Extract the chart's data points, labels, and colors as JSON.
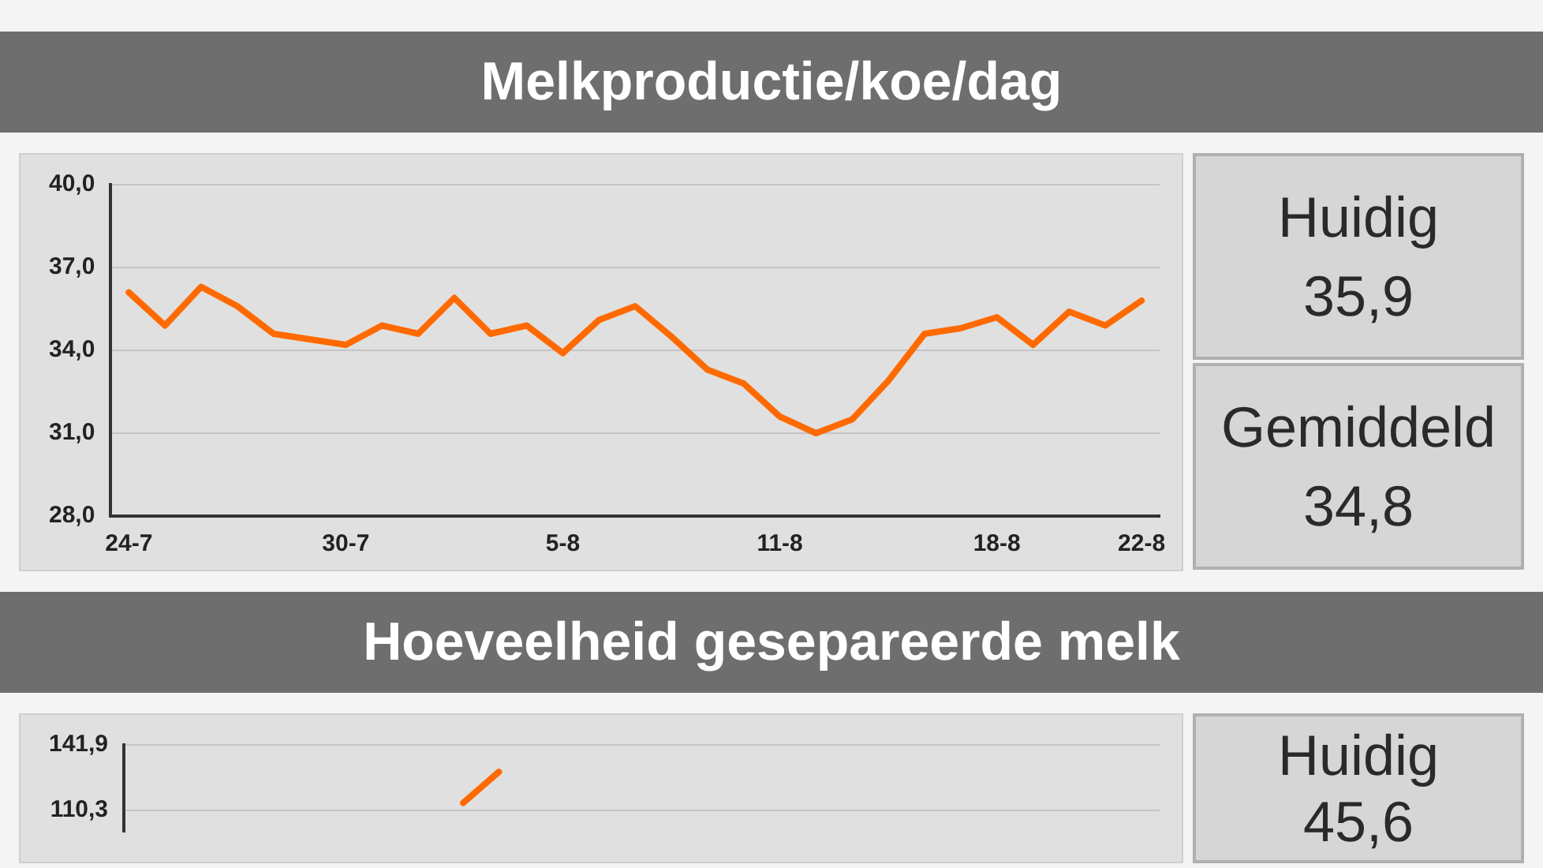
{
  "chart_data": [
    {
      "type": "line",
      "title": "Melkproductie/koe/dag",
      "categories": [
        "24-7",
        null,
        null,
        null,
        null,
        null,
        "30-7",
        null,
        null,
        null,
        null,
        null,
        "5-8",
        null,
        null,
        null,
        null,
        null,
        "11-8",
        null,
        null,
        null,
        null,
        null,
        "18-8",
        null,
        null,
        null,
        "22-8"
      ],
      "series": [
        {
          "color": "#ff6a00",
          "values": [
            36.1,
            34.9,
            36.3,
            35.6,
            34.6,
            34.4,
            34.2,
            34.9,
            34.6,
            35.9,
            34.6,
            34.9,
            33.9,
            35.1,
            35.6,
            34.5,
            33.3,
            32.8,
            31.6,
            31.0,
            31.5,
            32.9,
            34.6,
            34.8,
            35.2,
            34.2,
            35.4,
            34.9,
            35.8
          ]
        }
      ],
      "ylim": [
        28,
        40
      ],
      "yticks": [
        {
          "value": 28,
          "label": "28,0"
        },
        {
          "value": 31,
          "label": "31,0"
        },
        {
          "value": 34,
          "label": "34,0"
        },
        {
          "value": 37,
          "label": "37,0"
        },
        {
          "value": 40,
          "label": "40,0"
        }
      ],
      "grid": "y",
      "legend": false,
      "marker": "none",
      "line_style": "solid",
      "annotations": [
        "Huidig",
        "35,9",
        "Gemiddeld",
        "34,8"
      ]
    },
    {
      "type": "line",
      "title": "Hoeveelheid gesepareerde melk",
      "categories": [
        null,
        null,
        null,
        null,
        null,
        null,
        null,
        null,
        null,
        null,
        null,
        null,
        null,
        null,
        null,
        null,
        null,
        null,
        null,
        null,
        null,
        null,
        null,
        null,
        null,
        null,
        null,
        null,
        null
      ],
      "series": [
        {
          "color": "#ff6a00",
          "values": [
            null,
            null,
            null,
            null,
            null,
            null,
            null,
            null,
            null,
            113.9,
            128.9,
            null,
            null,
            null,
            null,
            null,
            null,
            null,
            null,
            null,
            null,
            null,
            null,
            null,
            null,
            null,
            null,
            null,
            null
          ]
        }
      ],
      "ylim": [
        100,
        141.9
      ],
      "yticks": [
        {
          "value": 110.3,
          "label": "110,3"
        },
        {
          "value": 141.9,
          "label": "141,9"
        }
      ],
      "grid": "y",
      "legend": false,
      "marker": "none",
      "line_style": "solid",
      "tick_labels": "y",
      "annotations": [
        "Huidig",
        "45,6"
      ]
    }
  ]
}
